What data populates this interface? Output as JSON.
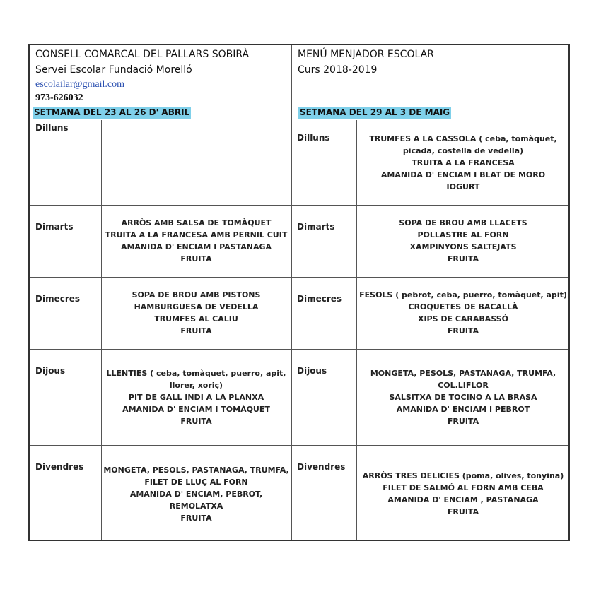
{
  "header": {
    "org": "CONSELL COMARCAL DEL PALLARS SOBIRÀ",
    "service": "Servei Escolar Fundació Morelló",
    "email": "escolailar@gmail.com",
    "phone": "973-626032",
    "title": "MENÚ MENJADOR ESCOLAR",
    "course": "Curs 2018-2019"
  },
  "weeks": [
    {
      "label": "SETMANA DEL 23 AL 26 D' ABRIL",
      "days": [
        {
          "day": "Dilluns",
          "items": []
        },
        {
          "day": "Dimarts",
          "items": [
            "ARRÒS AMB SALSA DE TOMÀQUET",
            "TRUITA A LA FRANCESA AMB PERNIL CUIT",
            "AMANIDA D' ENCIAM I PASTANAGA",
            "FRUITA"
          ]
        },
        {
          "day": "Dimecres",
          "items": [
            "SOPA DE BROU AMB PISTONS",
            "HAMBURGUESA DE VEDELLA",
            "TRUMFES AL CALIU",
            "FRUITA"
          ]
        },
        {
          "day": "Dijous",
          "items": [
            "LLENTIES ( ceba, tomàquet, puerro, apit,",
            "llorer, xoriç)",
            "PIT DE GALL INDI A LA PLANXA",
            "AMANIDA D' ENCIAM I TOMÀQUET",
            "FRUITA"
          ]
        },
        {
          "day": "Divendres",
          "items": [
            "MONGETA, PESOLS, PASTANAGA, TRUMFA,",
            "FILET DE LLUÇ AL FORN",
            "AMANIDA D' ENCIAM, PEBROT,",
            "REMOLATXA",
            "FRUITA"
          ]
        }
      ]
    },
    {
      "label": "SETMANA DEL 29 AL 3 DE MAIG",
      "days": [
        {
          "day": "Dilluns",
          "items": [
            "TRUMFES  A LA CASSOLA ( ceba, tomàquet,",
            "picada, costella de vedella)",
            "TRUITA A LA FRANCESA",
            "AMANIDA D' ENCIAM I BLAT DE MORO",
            "IOGURT"
          ]
        },
        {
          "day": "Dimarts",
          "items": [
            "SOPA DE BROU AMB LLACETS",
            "POLLASTRE AL FORN",
            "XAMPINYONS SALTEJATS",
            "FRUITA"
          ]
        },
        {
          "day": "Dimecres",
          "items": [
            "FESOLS ( pebrot, ceba, puerro, tomàquet, apit)",
            "CROQUETES DE BACALLÀ",
            "XIPS DE CARABASSÓ",
            "FRUITA"
          ]
        },
        {
          "day": "Dijous",
          "items": [
            "MONGETA, PESOLS, PASTANAGA, TRUMFA,",
            "COL.LIFLOR",
            "SALSITXA DE TOCINO A LA BRASA",
            "AMANIDA D' ENCIAM I PEBROT",
            "FRUITA"
          ]
        },
        {
          "day": "Divendres",
          "items": [
            "ARRÒS TRES DELICIES (poma, olives, tonyina)",
            "FILET DE SALMÓ AL FORN AMB CEBA",
            "AMANIDA D' ENCIAM , PASTANAGA",
            "FRUITA"
          ]
        }
      ]
    }
  ]
}
